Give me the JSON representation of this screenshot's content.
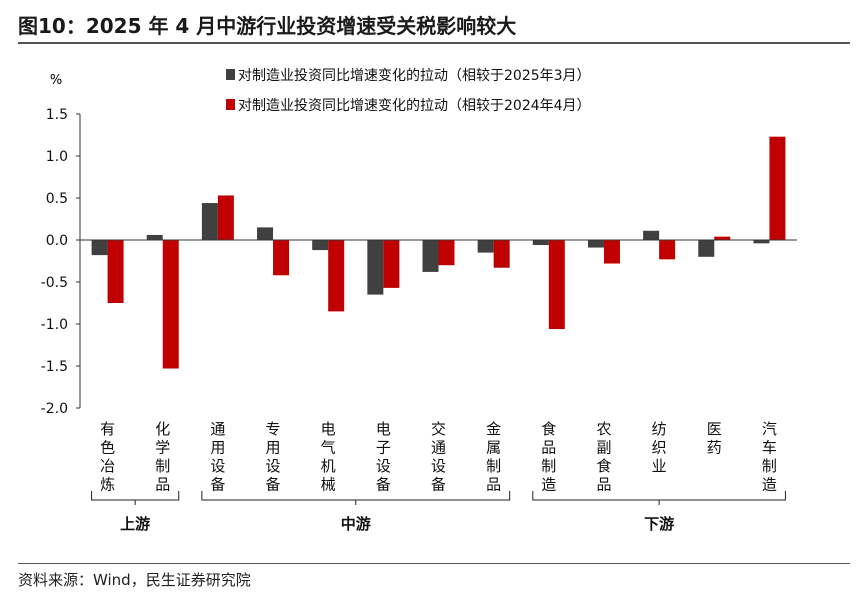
{
  "title": "图10：2025 年 4 月中游行业投资增速受关税影响较大",
  "source": "资料来源：Wind，民生证券研究院",
  "chart_data": {
    "type": "bar",
    "ylabel": "%",
    "ylim": [
      -2.0,
      1.5
    ],
    "yticks": [
      "1.5",
      "1.0",
      "0.5",
      "0.0",
      "-0.5",
      "-1.0",
      "-1.5",
      "-2.0"
    ],
    "categories": [
      "有色冶炼",
      "化学制品",
      "通用设备",
      "专用设备",
      "电气机械",
      "电子设备",
      "交通设备",
      "金属制品",
      "食品制造",
      "农副食品",
      "纺织业",
      "医药",
      "汽车制造"
    ],
    "series": [
      {
        "name": "对制造业投资同比增速变化的拉动（相较于2025年3月）",
        "color": "#404040",
        "values": [
          -0.18,
          0.06,
          0.44,
          0.15,
          -0.12,
          -0.65,
          -0.38,
          -0.15,
          -0.06,
          -0.09,
          0.11,
          -0.2,
          -0.04
        ]
      },
      {
        "name": "对制造业投资同比增速变化的拉动（相较于2024年4月）",
        "color": "#c00000",
        "values": [
          -0.75,
          -1.53,
          0.53,
          -0.42,
          -0.85,
          -0.57,
          -0.3,
          -0.33,
          -1.06,
          -0.28,
          -0.23,
          0.04,
          1.23
        ]
      }
    ],
    "groups": [
      {
        "label": "上游",
        "from": 0,
        "to": 1
      },
      {
        "label": "中游",
        "from": 2,
        "to": 7
      },
      {
        "label": "下游",
        "from": 8,
        "to": 12
      }
    ],
    "legend_position": "top"
  }
}
